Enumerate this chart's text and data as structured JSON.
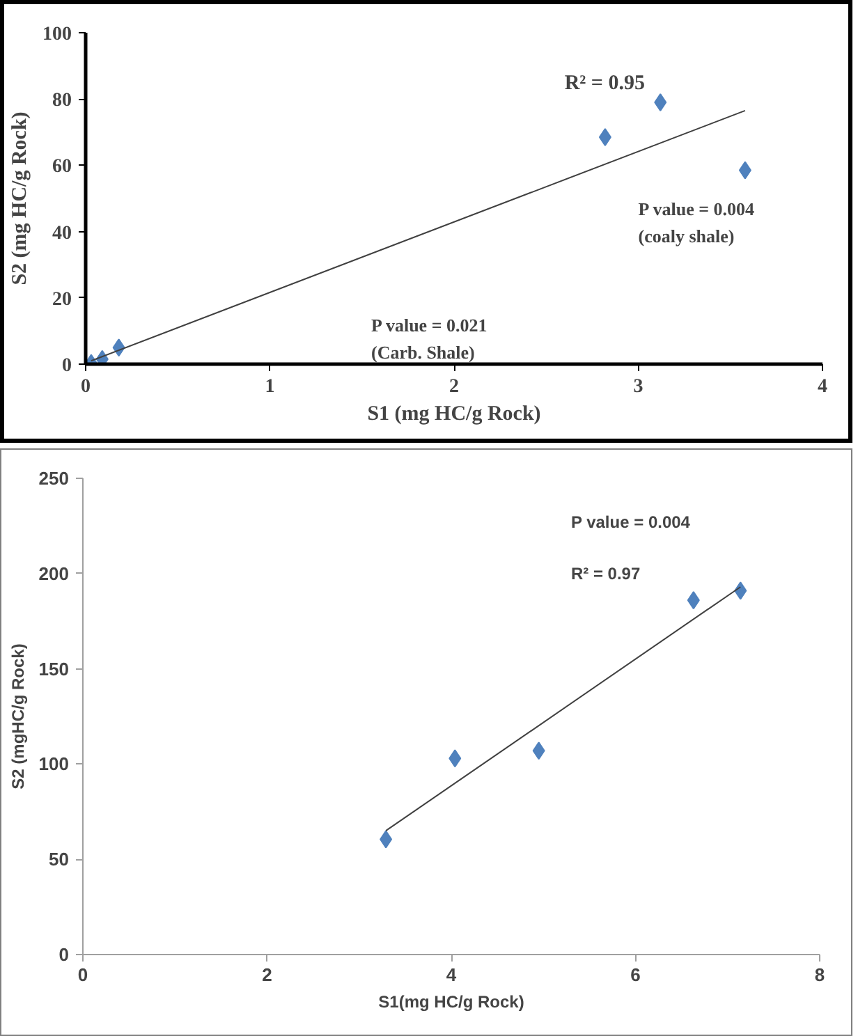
{
  "chart_data": [
    {
      "type": "scatter",
      "xlabel": "S1 (mg HC/g Rock)",
      "ylabel": "S2 (mg HC/g Rock)",
      "xlim": [
        0,
        4
      ],
      "ylim": [
        0,
        100
      ],
      "xticks": [
        0,
        1,
        2,
        3,
        4
      ],
      "yticks": [
        0,
        20,
        40,
        60,
        80,
        100
      ],
      "series": [
        {
          "color": "#4f81bd",
          "marker": "diamond",
          "x": [
            0.03,
            0.09,
            0.18,
            2.82,
            3.12,
            3.58
          ],
          "values": [
            0.3,
            1.5,
            5,
            68.5,
            79,
            58.5
          ]
        },
        {
          "type": "line",
          "color": "#404040",
          "x": [
            0.03,
            3.58
          ],
          "values": [
            1,
            76.5
          ]
        }
      ],
      "annotations": [
        "R² = 0.95",
        "P value = 0.004\n(coaly shale)",
        "P value = 0.021\n(Carb. Shale)"
      ]
    },
    {
      "type": "scatter",
      "xlabel": "S1(mg HC/g Rock)",
      "ylabel": "S2 (mgHC/g Rock)",
      "xlim": [
        0,
        8
      ],
      "ylim": [
        0,
        250
      ],
      "xticks": [
        0,
        2,
        4,
        6,
        8
      ],
      "yticks": [
        0,
        50,
        100,
        150,
        200,
        250
      ],
      "series": [
        {
          "color": "#4f81bd",
          "marker": "diamond",
          "x": [
            3.29,
            4.04,
            4.95,
            6.63,
            7.14
          ],
          "values": [
            60.5,
            103,
            107,
            186,
            191
          ]
        },
        {
          "type": "line",
          "color": "#404040",
          "x": [
            3.29,
            7.14
          ],
          "values": [
            65,
            193
          ]
        }
      ],
      "annotations": [
        "P value = 0.004",
        "R² = 0.97"
      ]
    }
  ]
}
